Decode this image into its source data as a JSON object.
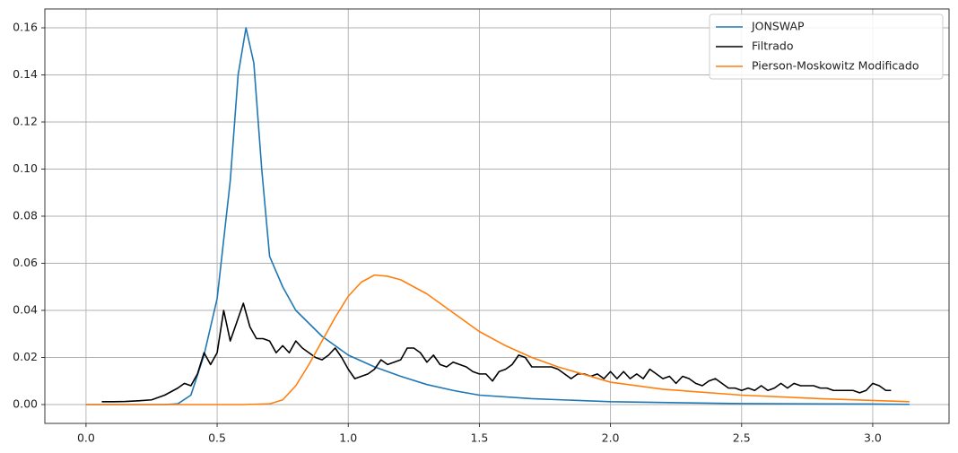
{
  "chart_data": {
    "type": "line",
    "xlim": [
      -0.157,
      3.291
    ],
    "ylim": [
      -0.008,
      0.168
    ],
    "xticks": [
      {
        "value": 0,
        "label": "0.0"
      },
      0.5,
      {
        "value": 1,
        "label": "1.0"
      },
      1.5,
      {
        "value": 2,
        "label": "2.0"
      },
      2.5,
      {
        "value": 3,
        "label": "3.0"
      }
    ],
    "yticks": [
      {
        "value": 0,
        "label": "0.00"
      },
      0.02,
      0.04,
      0.06,
      0.08,
      {
        "value": 0.1,
        "label": "0.10"
      },
      0.12,
      0.14,
      0.16
    ],
    "grid": true,
    "legend": "upper right",
    "series": [
      {
        "name": "JONSWAP",
        "color": "#1f77b4",
        "x": [
          0,
          0.3,
          0.35,
          0.4,
          0.45,
          0.5,
          0.55,
          0.58,
          0.61,
          0.64,
          0.67,
          0.7,
          0.75,
          0.8,
          0.9,
          1.0,
          1.1,
          1.2,
          1.3,
          1.4,
          1.5,
          1.7,
          2.0,
          2.5,
          3.0,
          3.14
        ],
        "values": [
          0,
          0,
          0.0003,
          0.004,
          0.021,
          0.045,
          0.095,
          0.14,
          0.16,
          0.145,
          0.1,
          0.063,
          0.05,
          0.04,
          0.029,
          0.021,
          0.016,
          0.012,
          0.0085,
          0.006,
          0.004,
          0.0025,
          0.0012,
          0.0004,
          0.0002,
          0.0001
        ]
      },
      {
        "name": "Filtrado",
        "color": "#000000",
        "x": [
          0.06,
          0.1,
          0.15,
          0.2,
          0.25,
          0.3,
          0.35,
          0.375,
          0.4,
          0.425,
          0.45,
          0.475,
          0.5,
          0.525,
          0.55,
          0.575,
          0.6,
          0.625,
          0.65,
          0.675,
          0.7,
          0.725,
          0.75,
          0.775,
          0.8,
          0.825,
          0.85,
          0.875,
          0.9,
          0.925,
          0.95,
          0.975,
          1.0,
          1.025,
          1.05,
          1.075,
          1.1,
          1.125,
          1.15,
          1.175,
          1.2,
          1.225,
          1.25,
          1.275,
          1.3,
          1.325,
          1.35,
          1.375,
          1.4,
          1.425,
          1.45,
          1.475,
          1.5,
          1.525,
          1.55,
          1.575,
          1.6,
          1.625,
          1.65,
          1.675,
          1.7,
          1.725,
          1.75,
          1.775,
          1.8,
          1.825,
          1.85,
          1.875,
          1.9,
          1.925,
          1.95,
          1.975,
          2.0,
          2.025,
          2.05,
          2.075,
          2.1,
          2.125,
          2.15,
          2.175,
          2.2,
          2.225,
          2.25,
          2.275,
          2.3,
          2.325,
          2.35,
          2.375,
          2.4,
          2.425,
          2.45,
          2.475,
          2.5,
          2.525,
          2.55,
          2.575,
          2.6,
          2.625,
          2.65,
          2.675,
          2.7,
          2.725,
          2.75,
          2.775,
          2.8,
          2.825,
          2.85,
          2.875,
          2.9,
          2.925,
          2.95,
          2.975,
          3.0,
          3.025,
          3.05,
          3.07
        ],
        "values": [
          0.0012,
          0.0012,
          0.0013,
          0.0016,
          0.002,
          0.004,
          0.007,
          0.009,
          0.008,
          0.013,
          0.022,
          0.017,
          0.022,
          0.04,
          0.027,
          0.035,
          0.043,
          0.033,
          0.028,
          0.028,
          0.027,
          0.022,
          0.025,
          0.022,
          0.027,
          0.024,
          0.022,
          0.02,
          0.019,
          0.021,
          0.024,
          0.02,
          0.015,
          0.011,
          0.012,
          0.013,
          0.015,
          0.019,
          0.017,
          0.018,
          0.019,
          0.024,
          0.024,
          0.022,
          0.018,
          0.021,
          0.017,
          0.016,
          0.018,
          0.017,
          0.016,
          0.014,
          0.013,
          0.013,
          0.01,
          0.014,
          0.015,
          0.017,
          0.021,
          0.02,
          0.016,
          0.016,
          0.016,
          0.016,
          0.015,
          0.013,
          0.011,
          0.013,
          0.013,
          0.012,
          0.013,
          0.011,
          0.014,
          0.011,
          0.014,
          0.011,
          0.013,
          0.011,
          0.015,
          0.013,
          0.011,
          0.012,
          0.009,
          0.012,
          0.011,
          0.009,
          0.008,
          0.01,
          0.011,
          0.009,
          0.007,
          0.007,
          0.006,
          0.007,
          0.006,
          0.008,
          0.006,
          0.007,
          0.009,
          0.007,
          0.009,
          0.008,
          0.008,
          0.008,
          0.007,
          0.007,
          0.006,
          0.006,
          0.006,
          0.006,
          0.005,
          0.006,
          0.009,
          0.008,
          0.006,
          0.006
        ]
      },
      {
        "name": "Pierson-Moskowitz Modificado",
        "color": "#ff7f0e",
        "x": [
          0,
          0.6,
          0.7,
          0.75,
          0.8,
          0.85,
          0.9,
          0.95,
          1.0,
          1.05,
          1.1,
          1.15,
          1.2,
          1.3,
          1.4,
          1.5,
          1.6,
          1.7,
          1.8,
          2.0,
          2.2,
          2.5,
          2.8,
          3.14
        ],
        "values": [
          0,
          0,
          0.0003,
          0.002,
          0.008,
          0.017,
          0.027,
          0.037,
          0.046,
          0.052,
          0.055,
          0.0545,
          0.053,
          0.047,
          0.039,
          0.031,
          0.025,
          0.02,
          0.016,
          0.0095,
          0.0065,
          0.004,
          0.0025,
          0.0012
        ]
      }
    ]
  }
}
